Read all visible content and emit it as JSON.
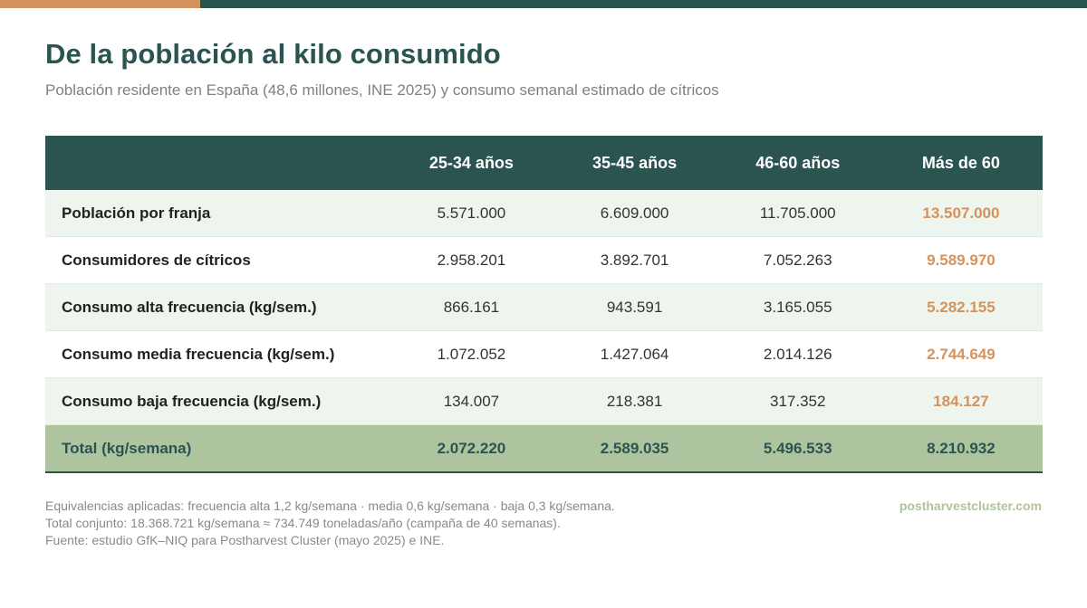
{
  "header": {
    "title": "De la población al kilo consumido",
    "subtitle": "Población residente en España (48,6 millones, INE 2025) y consumo semanal estimado de cítricos"
  },
  "colors": {
    "primary": "#2b5450",
    "accent": "#d4935e",
    "total_row": "#adc49e",
    "row_alt": "#eef4ee"
  },
  "table": {
    "columns": [
      "",
      "25-34 años",
      "35-45 años",
      "46-60 años",
      "Más de 60"
    ],
    "rows": [
      {
        "label": "Población por franja",
        "values": [
          "5.571.000",
          "6.609.000",
          "11.705.000",
          "13.507.000"
        ]
      },
      {
        "label": "Consumidores de cítricos",
        "values": [
          "2.958.201",
          "3.892.701",
          "7.052.263",
          "9.589.970"
        ]
      },
      {
        "label": "Consumo alta frecuencia (kg/sem.)",
        "values": [
          "866.161",
          "943.591",
          "3.165.055",
          "5.282.155"
        ]
      },
      {
        "label": "Consumo media frecuencia (kg/sem.)",
        "values": [
          "1.072.052",
          "1.427.064",
          "2.014.126",
          "2.744.649"
        ]
      },
      {
        "label": "Consumo baja frecuencia (kg/sem.)",
        "values": [
          "134.007",
          "218.381",
          "317.352",
          "184.127"
        ]
      }
    ],
    "total": {
      "label": "Total (kg/semana)",
      "values": [
        "2.072.220",
        "2.589.035",
        "5.496.533",
        "8.210.932"
      ]
    }
  },
  "footer": {
    "notes": [
      "Equivalencias aplicadas: frecuencia alta 1,2 kg/semana · media 0,6 kg/semana · baja 0,3 kg/semana.",
      "Total conjunto: 18.368.721 kg/semana ≈ 734.749 toneladas/año (campaña de 40 semanas).",
      "Fuente: estudio GfK–NIQ para Postharvest Cluster (mayo 2025) e INE."
    ],
    "brand": "postharvestcluster.com"
  }
}
